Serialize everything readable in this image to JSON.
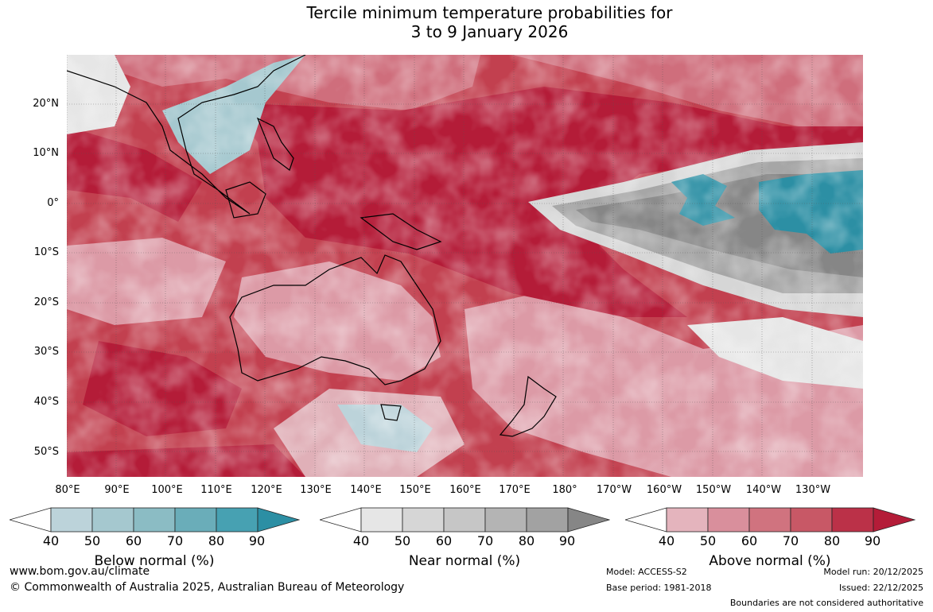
{
  "title": {
    "line1": "Tercile minimum temperature probabilities for",
    "line2": "3 to 9 January 2026"
  },
  "lat_labels": [
    "20°N",
    "10°N",
    "0°",
    "10°S",
    "20°S",
    "30°S",
    "40°S",
    "50°S"
  ],
  "lon_labels": [
    "80°E",
    "90°E",
    "100°E",
    "110°E",
    "120°E",
    "130°E",
    "140°E",
    "150°E",
    "160°E",
    "170°E",
    "180°",
    "170°W",
    "160°W",
    "150°W",
    "140°W",
    "130°W"
  ],
  "colorbars": [
    {
      "label": "Below normal (%)",
      "ticks": [
        "40",
        "50",
        "60",
        "70",
        "80",
        "90"
      ],
      "colors": [
        "#ffffff",
        "#bcd3da",
        "#a5c8cf",
        "#8bbcc4",
        "#6aadb9",
        "#47a1b2",
        "#2c8fa4"
      ]
    },
    {
      "label": "Near normal (%)",
      "ticks": [
        "40",
        "50",
        "60",
        "70",
        "80",
        "90"
      ],
      "colors": [
        "#ffffff",
        "#e6e6e6",
        "#d6d6d6",
        "#c6c6c6",
        "#b4b4b4",
        "#a2a2a2",
        "#868686"
      ]
    },
    {
      "label": "Above normal (%)",
      "ticks": [
        "40",
        "50",
        "60",
        "70",
        "80",
        "90"
      ],
      "colors": [
        "#ffffff",
        "#e4b4bd",
        "#d98f9c",
        "#d0737f",
        "#c85866",
        "#bb3148",
        "#b41c38"
      ]
    }
  ],
  "footer": {
    "website": "www.bom.gov.au/climate",
    "copyright": "© Commonwealth of Australia 2025, Australian Bureau of Meteorology",
    "model": "Model: ACCESS-S2",
    "base_period": "Base period: 1981-2018",
    "model_run": "Model run: 20/12/2025",
    "issued": "Issued: 22/12/2025",
    "boundaries_note": "Boundaries are not considered authoritative"
  }
}
